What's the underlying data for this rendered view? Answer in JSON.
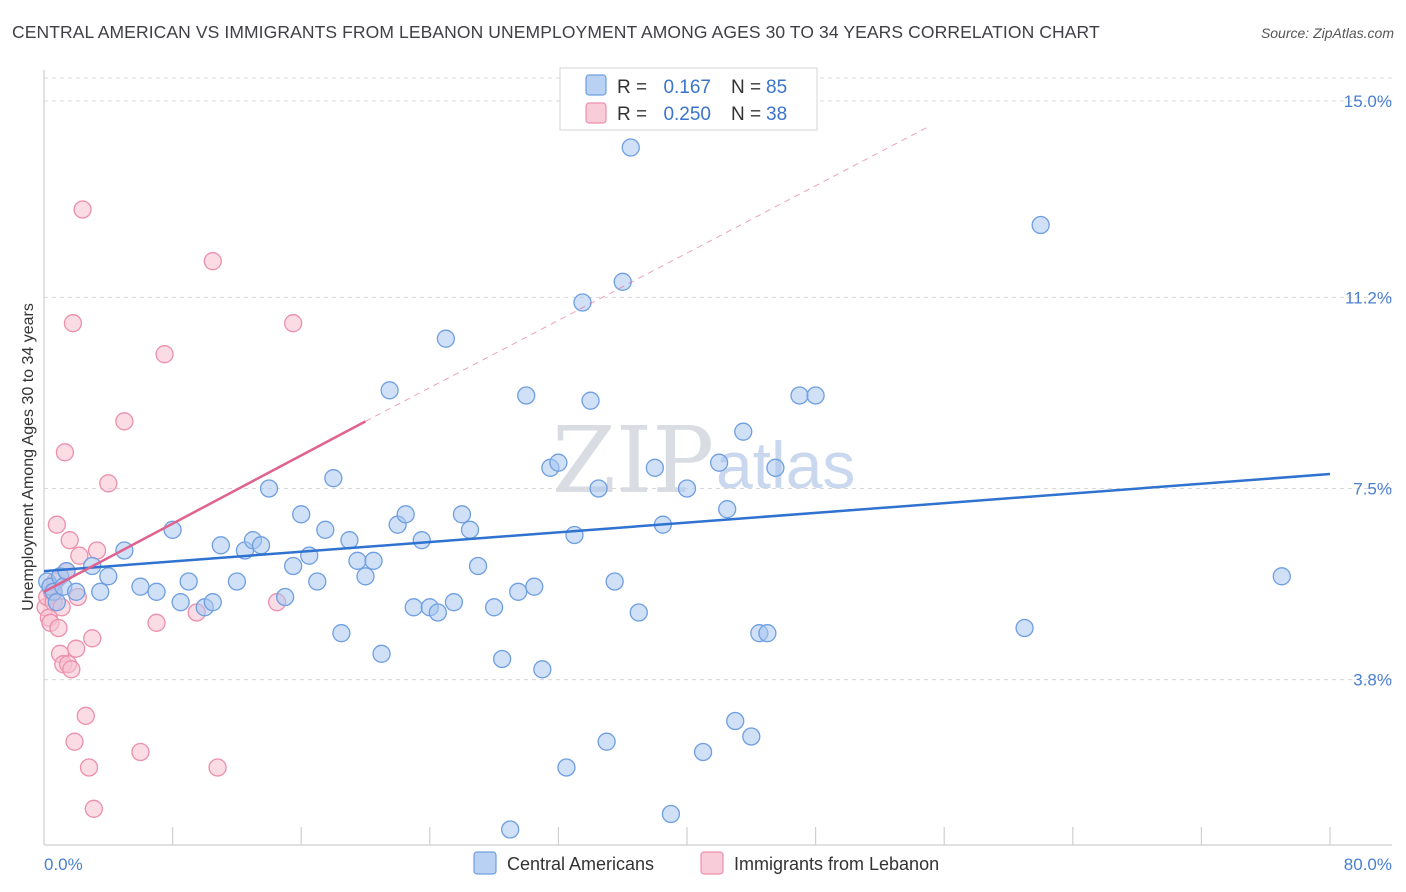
{
  "title": "CENTRAL AMERICAN VS IMMIGRANTS FROM LEBANON UNEMPLOYMENT AMONG AGES 30 TO 34 YEARS CORRELATION CHART",
  "source": "Source: ZipAtlas.com",
  "watermark": {
    "part1": "ZIP",
    "part2": "atlas"
  },
  "colors": {
    "blue_fill": "#a8c6f0",
    "blue_stroke": "#6f9fe0",
    "blue_line": "#2f72d0",
    "pink_fill": "#f7bfd0",
    "pink_stroke": "#ec8fac",
    "pink_line": "#e0628e",
    "grid": "#d8d8d8",
    "tick_label": "#4a7fd0"
  },
  "legend": {
    "rows": [
      {
        "r_label": "R = ",
        "r_value": "0.167",
        "n_label": "N = ",
        "n_value": "85"
      },
      {
        "r_label": "R = ",
        "r_value": "0.250",
        "n_label": "N = ",
        "n_value": "38"
      }
    ]
  },
  "chart_data": {
    "type": "scatter",
    "title": "CENTRAL AMERICAN VS IMMIGRANTS FROM LEBANON UNEMPLOYMENT AMONG AGES 30 TO 34 YEARS CORRELATION CHART",
    "xlabel": "",
    "ylabel": "Unemployment Among Ages 30 to 34 years",
    "xlim": [
      0,
      80
    ],
    "ylim": [
      0.6,
      15.6
    ],
    "x_tick_labels": [
      "0.0%",
      "80.0%"
    ],
    "y_ticks": [
      3.8,
      7.5,
      11.2,
      15.0
    ],
    "y_tick_labels": [
      "3.8%",
      "7.5%",
      "11.2%",
      "15.0%"
    ],
    "grid": true,
    "legend_position": "top-center",
    "series": [
      {
        "name": "Central Americans",
        "color": "blue",
        "R": 0.167,
        "N": 85,
        "trend": {
          "x": [
            0,
            80
          ],
          "y": [
            5.9,
            7.78
          ]
        },
        "points": [
          [
            0.2,
            5.7
          ],
          [
            0.4,
            5.6
          ],
          [
            0.6,
            5.5
          ],
          [
            0.8,
            5.3
          ],
          [
            1.0,
            5.8
          ],
          [
            1.2,
            5.6
          ],
          [
            1.4,
            5.9
          ],
          [
            2.0,
            5.5
          ],
          [
            3.0,
            6.0
          ],
          [
            4.0,
            5.8
          ],
          [
            3.5,
            5.5
          ],
          [
            5.0,
            6.3
          ],
          [
            6.0,
            5.6
          ],
          [
            7.0,
            5.5
          ],
          [
            8.0,
            6.7
          ],
          [
            9.0,
            5.7
          ],
          [
            8.5,
            5.3
          ],
          [
            10.0,
            5.2
          ],
          [
            10.5,
            5.3
          ],
          [
            11.0,
            6.4
          ],
          [
            12.0,
            5.7
          ],
          [
            12.5,
            6.3
          ],
          [
            13.0,
            6.5
          ],
          [
            13.5,
            6.4
          ],
          [
            14.0,
            7.5
          ],
          [
            15.0,
            5.4
          ],
          [
            15.5,
            6.0
          ],
          [
            16.0,
            7.0
          ],
          [
            16.5,
            6.2
          ],
          [
            17.0,
            5.7
          ],
          [
            17.5,
            6.7
          ],
          [
            18.0,
            7.7
          ],
          [
            18.5,
            4.7
          ],
          [
            19.0,
            6.5
          ],
          [
            19.5,
            6.1
          ],
          [
            20.0,
            5.8
          ],
          [
            20.5,
            6.1
          ],
          [
            21.0,
            4.3
          ],
          [
            21.5,
            9.4
          ],
          [
            22.0,
            6.8
          ],
          [
            22.5,
            7.0
          ],
          [
            23.0,
            5.2
          ],
          [
            23.5,
            6.5
          ],
          [
            24.0,
            5.2
          ],
          [
            24.5,
            5.1
          ],
          [
            25.0,
            10.4
          ],
          [
            25.5,
            5.3
          ],
          [
            26.0,
            7.0
          ],
          [
            26.5,
            6.7
          ],
          [
            27.0,
            6.0
          ],
          [
            28.0,
            5.2
          ],
          [
            28.5,
            4.2
          ],
          [
            29.0,
            0.9
          ],
          [
            29.5,
            5.5
          ],
          [
            30.0,
            9.3
          ],
          [
            30.5,
            5.6
          ],
          [
            31.0,
            4.0
          ],
          [
            31.5,
            7.9
          ],
          [
            32.0,
            8.0
          ],
          [
            32.5,
            2.1
          ],
          [
            33.0,
            6.6
          ],
          [
            33.5,
            11.1
          ],
          [
            34.0,
            9.2
          ],
          [
            34.5,
            7.5
          ],
          [
            35.0,
            2.6
          ],
          [
            35.5,
            5.7
          ],
          [
            36.0,
            11.5
          ],
          [
            36.5,
            14.1
          ],
          [
            37.0,
            5.1
          ],
          [
            38.0,
            7.9
          ],
          [
            38.5,
            6.8
          ],
          [
            39.0,
            1.2
          ],
          [
            40.0,
            7.5
          ],
          [
            41.0,
            2.4
          ],
          [
            42.0,
            8.0
          ],
          [
            42.5,
            7.1
          ],
          [
            43.0,
            3.0
          ],
          [
            43.5,
            8.6
          ],
          [
            44.0,
            2.7
          ],
          [
            44.5,
            4.7
          ],
          [
            45.0,
            4.7
          ],
          [
            45.5,
            7.9
          ],
          [
            47.0,
            9.3
          ],
          [
            48.0,
            9.3
          ],
          [
            61.0,
            4.8
          ],
          [
            62.0,
            12.6
          ],
          [
            77.0,
            5.8
          ]
        ]
      },
      {
        "name": "Immigrants from Lebanon",
        "color": "pink",
        "R": 0.25,
        "N": 38,
        "trend": {
          "x": [
            0,
            20
          ],
          "y": [
            5.5,
            8.8
          ]
        },
        "trend_extension": {
          "x": [
            20,
            55
          ],
          "y": [
            8.8,
            14.5
          ]
        },
        "points": [
          [
            0.1,
            5.2
          ],
          [
            0.2,
            5.4
          ],
          [
            0.3,
            5.0
          ],
          [
            0.4,
            4.9
          ],
          [
            0.5,
            5.5
          ],
          [
            0.6,
            5.3
          ],
          [
            0.7,
            5.7
          ],
          [
            0.8,
            6.8
          ],
          [
            0.9,
            4.8
          ],
          [
            1.0,
            4.3
          ],
          [
            1.1,
            5.2
          ],
          [
            1.2,
            4.1
          ],
          [
            1.3,
            8.2
          ],
          [
            1.4,
            5.9
          ],
          [
            1.5,
            4.1
          ],
          [
            1.6,
            6.5
          ],
          [
            1.7,
            4.0
          ],
          [
            1.8,
            10.7
          ],
          [
            1.9,
            2.6
          ],
          [
            2.0,
            4.4
          ],
          [
            2.1,
            5.4
          ],
          [
            2.2,
            6.2
          ],
          [
            2.4,
            12.9
          ],
          [
            2.6,
            3.1
          ],
          [
            2.8,
            2.1
          ],
          [
            3.0,
            4.6
          ],
          [
            3.1,
            1.3
          ],
          [
            3.3,
            6.3
          ],
          [
            4.0,
            7.6
          ],
          [
            5.0,
            8.8
          ],
          [
            6.0,
            2.4
          ],
          [
            7.0,
            4.9
          ],
          [
            7.5,
            10.1
          ],
          [
            9.5,
            5.1
          ],
          [
            10.5,
            11.9
          ],
          [
            10.8,
            2.1
          ],
          [
            14.5,
            5.3
          ],
          [
            15.5,
            10.7
          ]
        ]
      }
    ]
  }
}
